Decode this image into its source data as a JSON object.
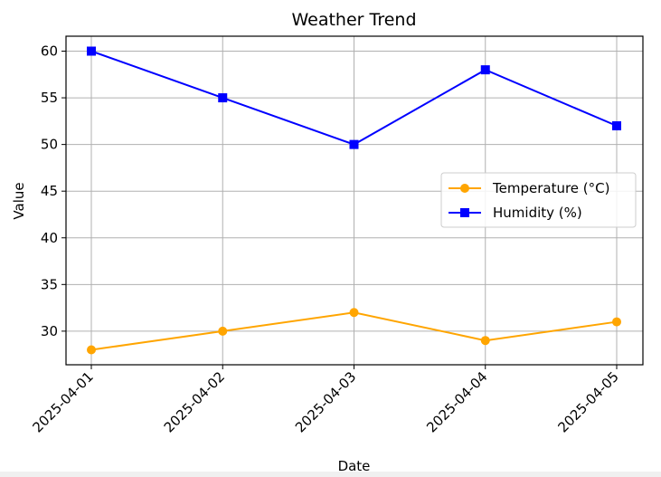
{
  "chart_data": {
    "type": "line",
    "title": "Weather Trend",
    "xlabel": "Date",
    "ylabel": "Value",
    "categories": [
      "2025-04-01",
      "2025-04-02",
      "2025-04-03",
      "2025-04-04",
      "2025-04-05"
    ],
    "series": [
      {
        "name": "Temperature (°C)",
        "values": [
          28,
          30,
          32,
          29,
          31
        ],
        "color": "#ffa500",
        "marker": "circle"
      },
      {
        "name": "Humidity (%)",
        "values": [
          60,
          55,
          50,
          58,
          52
        ],
        "color": "#0000ff",
        "marker": "square"
      }
    ],
    "yticks": [
      30,
      35,
      40,
      45,
      50,
      55,
      60
    ],
    "ylim": [
      26.4,
      61.6
    ],
    "grid": true,
    "legend_position": "center-right",
    "x_tick_rotation": 45
  }
}
